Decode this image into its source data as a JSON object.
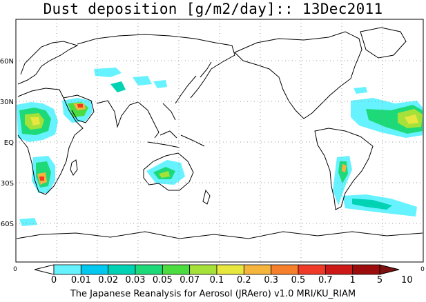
{
  "title": "Dust deposition [g/m2/day]:: 13Dec2011",
  "footer": "The Japanese Reanalysis for Aerosol (JRAero) v1.0 MRI/KU_RIAM",
  "map": {
    "projection": "equirectangular, Pacific-centred",
    "latitude_labels": [
      "60N",
      "30N",
      "EQ",
      "30S",
      "60S"
    ],
    "left_edge_tick": "0",
    "right_edge_tick": "0",
    "gridlines": "dotted, every 30 degrees",
    "regions": [
      {
        "name": "Arabian Peninsula / Red Sea",
        "level": "0.2-1"
      },
      {
        "name": "Sahara / West Africa",
        "level": "0.05-0.3"
      },
      {
        "name": "Southern Africa (Kalahari)",
        "level": "0.05-0.3"
      },
      {
        "name": "Central Asia",
        "level": "0.01-0.05"
      },
      {
        "name": "Australia",
        "level": "0.01-0.1"
      },
      {
        "name": "Tropical Atlantic plume",
        "level": "0.01-0.3"
      },
      {
        "name": "Patagonia / South Atlantic",
        "level": "0.01-0.1"
      },
      {
        "name": "Southern Ocean",
        "level": "0.01-0.02"
      }
    ]
  },
  "colorbar": {
    "labels": [
      "0",
      "0.01",
      "0.02",
      "0.03",
      "0.05",
      "0.07",
      "0.1",
      "0.2",
      "0.3",
      "0.5",
      "0.7",
      "1",
      "5",
      "10"
    ],
    "colors": [
      "#ffffff",
      "#66f2ff",
      "#00c8ee",
      "#00d2b4",
      "#1ed978",
      "#4ddc40",
      "#a6e13a",
      "#e7e740",
      "#f5b53d",
      "#f57f2b",
      "#ee3a26",
      "#cd1818",
      "#9c0c0c",
      "#7d1010"
    ]
  }
}
